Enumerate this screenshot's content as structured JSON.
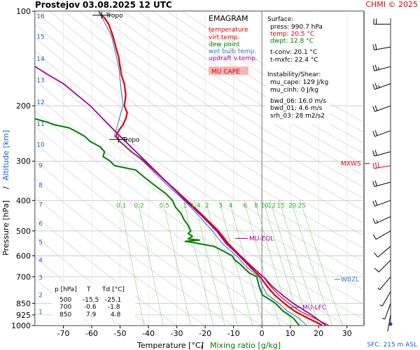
{
  "header": {
    "station": "Prostejov",
    "datetime": "03.08.2025 12 UTC",
    "copyright": "CHMI © 2025"
  },
  "legend": {
    "title": "EMAGRAM",
    "items": [
      {
        "label": "temperature",
        "color": "#e00000"
      },
      {
        "label": "virt.temp.",
        "color": "#e00000"
      },
      {
        "label": "dew point",
        "color": "#008000"
      },
      {
        "label": "wet bulb temp.",
        "color": "#3a7fd0"
      },
      {
        "label": "updraft v.temp.",
        "color": "#a000a0"
      }
    ],
    "cape_box": "MU CAPE",
    "cape_box_color": "#f4b6b6"
  },
  "surface": {
    "heading": "Surface:",
    "press": "press: 990.7 hPa",
    "temp": "temp: 20.5 °C",
    "dwpt": "dwpt: 12.8 °C",
    "tconv": "t-conv: 20.1 °C",
    "tmxfc": "t-mxfc: 22.4 °C"
  },
  "instability": {
    "heading": "Instability/Shear:",
    "mu_cape": "mu_cape: 129 J/kg",
    "mu_cinh": "mu_cinh: 0 J/kg",
    "bwd_06": "bwd_06: 16.0 m/s",
    "bwd_01": "bwd_01: 4.6 m/s",
    "srh_03": "srh_03: 28 m2/s2"
  },
  "table": {
    "headers": [
      "p [hPa]",
      "T",
      "Td [°C]"
    ],
    "rows": [
      [
        "500",
        "-15.5",
        "-25.1"
      ],
      [
        "700",
        "-0.6",
        "-1.8"
      ],
      [
        "850",
        "7.9",
        "4.8"
      ]
    ]
  },
  "annotations": {
    "tropo_upper": "Tropo",
    "tropo_lower": "Tropo",
    "mxws": "MXWS",
    "mu_eql": "MU-EQL",
    "wbzl": "WBZL",
    "mu_lfc": "MU-LFC",
    "sfc": "SFC: 215 m ASL"
  },
  "chart_data": {
    "type": "line",
    "title": "EMAGRAM",
    "xlabel": "Temperature [°C]",
    "xlabel_sep": "/",
    "xlabel2": "Mixing ratio [g/kg]",
    "ylabel": "Pressure [hPa]",
    "ylabel_sep": "/",
    "ylabel2": "Altitude [km]",
    "xlim": [
      -80,
      36
    ],
    "ylim": [
      1000,
      100
    ],
    "y_scale": "log",
    "x_ticks": [
      -70,
      -60,
      -50,
      -40,
      -30,
      -20,
      -10,
      0,
      10,
      20,
      30
    ],
    "pressure_ticks": [
      100,
      200,
      300,
      400,
      500,
      600,
      700,
      850,
      925,
      1000
    ],
    "altitude_ticks": [
      {
        "km": "1",
        "p": 900
      },
      {
        "km": "2",
        "p": 795
      },
      {
        "km": "3",
        "p": 701
      },
      {
        "km": "4",
        "p": 616
      },
      {
        "km": "5",
        "p": 540
      },
      {
        "km": "6",
        "p": 472
      },
      {
        "km": "7",
        "p": 411
      },
      {
        "km": "8",
        "p": 356
      },
      {
        "km": "9",
        "p": 308
      },
      {
        "km": "10",
        "p": 264
      },
      {
        "km": "11",
        "p": 227
      },
      {
        "km": "12",
        "p": 194
      },
      {
        "km": "13",
        "p": 165
      },
      {
        "km": "14",
        "p": 141
      },
      {
        "km": "15",
        "p": 120
      },
      {
        "km": "16",
        "p": 103
      }
    ],
    "mixing_ratio_labels": [
      "0.1",
      "0.2",
      "0.5",
      "1",
      "1.4",
      "2",
      "3",
      "4",
      "6",
      "8",
      "10",
      "12",
      "15",
      "20",
      "25"
    ],
    "mixing_ratio_label_p": 415,
    "series": [
      {
        "name": "temperature",
        "color": "#e00000",
        "points": [
          [
            1000,
            21.2
          ],
          [
            990,
            20.5
          ],
          [
            950,
            16.5
          ],
          [
            925,
            14.0
          ],
          [
            900,
            11.5
          ],
          [
            850,
            7.9
          ],
          [
            800,
            4.5
          ],
          [
            750,
            1.8
          ],
          [
            700,
            -0.6
          ],
          [
            650,
            -4.2
          ],
          [
            600,
            -8.0
          ],
          [
            550,
            -12.0
          ],
          [
            500,
            -15.5
          ],
          [
            450,
            -20.5
          ],
          [
            400,
            -26.5
          ],
          [
            350,
            -33.5
          ],
          [
            300,
            -41.5
          ],
          [
            280,
            -46.0
          ],
          [
            260,
            -50.0
          ],
          [
            250,
            -51.5
          ],
          [
            240,
            -50.5
          ],
          [
            230,
            -49.0
          ],
          [
            220,
            -48.0
          ],
          [
            210,
            -47.5
          ],
          [
            200,
            -48.5
          ],
          [
            185,
            -48.0
          ],
          [
            170,
            -48.5
          ],
          [
            160,
            -49.5
          ],
          [
            150,
            -50.0
          ],
          [
            140,
            -50.5
          ],
          [
            130,
            -51.5
          ],
          [
            120,
            -52.5
          ],
          [
            110,
            -54.0
          ],
          [
            105,
            -55.5
          ],
          [
            102,
            -57.0
          ],
          [
            100,
            -57.5
          ]
        ]
      },
      {
        "name": "virt.temp.",
        "color": "#e00000",
        "points": [
          [
            1000,
            23.5
          ],
          [
            990,
            22.8
          ],
          [
            950,
            18.7
          ],
          [
            925,
            16.1
          ],
          [
            900,
            13.4
          ],
          [
            850,
            9.5
          ],
          [
            800,
            5.9
          ],
          [
            750,
            3.0
          ],
          [
            700,
            0.5
          ],
          [
            650,
            -3.4
          ],
          [
            600,
            -7.4
          ],
          [
            550,
            -11.6
          ],
          [
            500,
            -15.2
          ],
          [
            450,
            -20.3
          ],
          [
            400,
            -26.4
          ],
          [
            350,
            -33.4
          ],
          [
            300,
            -41.4
          ]
        ]
      },
      {
        "name": "dew point",
        "color": "#008000",
        "points": [
          [
            1000,
            13.2
          ],
          [
            990,
            12.8
          ],
          [
            950,
            11.2
          ],
          [
            925,
            9.5
          ],
          [
            900,
            7.5
          ],
          [
            850,
            4.8
          ],
          [
            800,
            0.2
          ],
          [
            750,
            -1.0
          ],
          [
            720,
            -1.5
          ],
          [
            700,
            -1.8
          ],
          [
            680,
            -4.5
          ],
          [
            660,
            -6.0
          ],
          [
            640,
            -7.5
          ],
          [
            620,
            -9.5
          ],
          [
            600,
            -10.5
          ],
          [
            580,
            -13.5
          ],
          [
            560,
            -17.0
          ],
          [
            545,
            -24.0
          ],
          [
            540,
            -27.0
          ],
          [
            535,
            -22.0
          ],
          [
            530,
            -26.0
          ],
          [
            520,
            -24.5
          ],
          [
            510,
            -26.0
          ],
          [
            500,
            -25.1
          ],
          [
            480,
            -26.0
          ],
          [
            460,
            -27.5
          ],
          [
            440,
            -28.5
          ],
          [
            420,
            -30.5
          ],
          [
            400,
            -31.5
          ],
          [
            380,
            -34.0
          ],
          [
            360,
            -37.5
          ],
          [
            340,
            -41.0
          ],
          [
            320,
            -44.5
          ],
          [
            310,
            -52.0
          ],
          [
            300,
            -53.5
          ],
          [
            290,
            -56.0
          ],
          [
            280,
            -55.5
          ],
          [
            270,
            -57.0
          ],
          [
            260,
            -60.5
          ],
          [
            250,
            -62.5
          ],
          [
            240,
            -66.0
          ],
          [
            235,
            -68.0
          ],
          [
            230,
            -73.0
          ],
          [
            225,
            -76.0
          ],
          [
            220,
            -80.0
          ]
        ]
      },
      {
        "name": "wet bulb temp.",
        "color": "#3a7fd0",
        "points": [
          [
            1000,
            15.8
          ],
          [
            990,
            15.3
          ],
          [
            950,
            13.2
          ],
          [
            925,
            11.2
          ],
          [
            900,
            9.0
          ],
          [
            850,
            6.0
          ],
          [
            800,
            2.0
          ],
          [
            750,
            0.2
          ],
          [
            700,
            -1.1
          ],
          [
            650,
            -5.5
          ],
          [
            600,
            -9.0
          ],
          [
            550,
            -13.8
          ],
          [
            500,
            -17.5
          ],
          [
            450,
            -22.0
          ],
          [
            400,
            -27.5
          ],
          [
            350,
            -34.5
          ],
          [
            300,
            -42.0
          ],
          [
            250,
            -52.0
          ],
          [
            200,
            -49.0
          ],
          [
            150,
            -50.5
          ],
          [
            120,
            -53.0
          ],
          [
            100,
            -57.5
          ]
        ]
      },
      {
        "name": "updraft v.temp.",
        "color": "#a000a0",
        "points": [
          [
            1000,
            22.6
          ],
          [
            925,
            17.5
          ],
          [
            850,
            11.0
          ],
          [
            800,
            7.2
          ],
          [
            750,
            3.6
          ],
          [
            700,
            0.5
          ],
          [
            650,
            -3.6
          ],
          [
            600,
            -7.8
          ],
          [
            550,
            -12.5
          ],
          [
            500,
            -16.0
          ],
          [
            450,
            -21.0
          ],
          [
            400,
            -27.0
          ],
          [
            350,
            -33.5
          ],
          [
            300,
            -41.0
          ],
          [
            250,
            -50.0
          ],
          [
            200,
            -60.5
          ],
          [
            170,
            -70.0
          ],
          [
            160,
            -75.0
          ],
          [
            150,
            -80.0
          ]
        ]
      }
    ],
    "winds": [
      {
        "p": 110,
        "dir": 270,
        "spd": 10
      },
      {
        "p": 130,
        "dir": 260,
        "spd": 12
      },
      {
        "p": 150,
        "dir": 255,
        "spd": 14
      },
      {
        "p": 170,
        "dir": 250,
        "spd": 14
      },
      {
        "p": 200,
        "dir": 250,
        "spd": 12
      },
      {
        "p": 240,
        "dir": 250,
        "spd": 10
      },
      {
        "p": 280,
        "dir": 255,
        "spd": 11
      },
      {
        "p": 310,
        "dir": 260,
        "spd": 16
      },
      {
        "p": 350,
        "dir": 255,
        "spd": 12
      },
      {
        "p": 400,
        "dir": 250,
        "spd": 10
      },
      {
        "p": 450,
        "dir": 245,
        "spd": 8
      },
      {
        "p": 500,
        "dir": 240,
        "spd": 7
      },
      {
        "p": 560,
        "dir": 230,
        "spd": 6
      },
      {
        "p": 620,
        "dir": 225,
        "spd": 5
      },
      {
        "p": 700,
        "dir": 220,
        "spd": 4
      },
      {
        "p": 780,
        "dir": 210,
        "spd": 4
      },
      {
        "p": 850,
        "dir": 200,
        "spd": 3
      },
      {
        "p": 925,
        "dir": 190,
        "spd": 2
      }
    ],
    "winds_color": "#000000",
    "winds_highlight_color": "#e00000",
    "mxws_p": 305,
    "tropo_upper_p": 103,
    "tropo_lower_p": 256,
    "mu_eql_p": 528,
    "wbzl_p": 713,
    "mu_lfc_p": 875
  }
}
